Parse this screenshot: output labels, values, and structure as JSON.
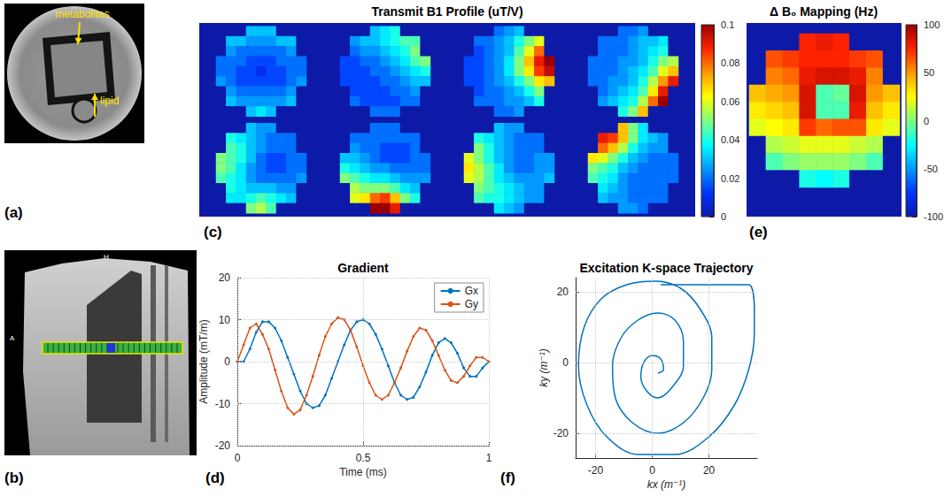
{
  "chart_data": [
    {
      "label": "(a)",
      "type": "image",
      "annotations": [
        "metabolites",
        "lipid"
      ]
    },
    {
      "label": "(b)",
      "type": "image",
      "annotations": [
        "H",
        "A"
      ]
    },
    {
      "label": "(c)",
      "type": "heatmap",
      "title": "Transmit B1 Profile (uT/V)",
      "maps": [
        [
          [
            0,
            0,
            0,
            0.03,
            0.03,
            0.03,
            0,
            0,
            0
          ],
          [
            0,
            0.03,
            0.03,
            0.025,
            0.025,
            0.025,
            0.03,
            0.03,
            0
          ],
          [
            0,
            0.025,
            0.02,
            0.02,
            0.02,
            0.02,
            0.02,
            0.025,
            0
          ],
          [
            0.02,
            0.02,
            0.02,
            0.015,
            0.015,
            0.015,
            0.02,
            0.02,
            0.02
          ],
          [
            0.02,
            0.02,
            0.015,
            0.015,
            0.01,
            0.015,
            0.015,
            0.02,
            0.02
          ],
          [
            0.025,
            0.02,
            0.015,
            0.015,
            0.015,
            0.015,
            0.015,
            0.02,
            0.025
          ],
          [
            0,
            0.025,
            0.02,
            0.02,
            0.02,
            0.02,
            0.02,
            0.025,
            0
          ],
          [
            0,
            0.03,
            0.025,
            0.025,
            0.025,
            0.025,
            0.025,
            0.03,
            0
          ],
          [
            0,
            0,
            0,
            0.03,
            0.035,
            0.03,
            0,
            0,
            0
          ]
        ],
        [
          [
            0,
            0,
            0,
            0.03,
            0.035,
            0.04,
            0,
            0,
            0
          ],
          [
            0,
            0.025,
            0.03,
            0.03,
            0.035,
            0.04,
            0.045,
            0.045,
            0
          ],
          [
            0,
            0.02,
            0.025,
            0.025,
            0.03,
            0.035,
            0.04,
            0.05,
            0
          ],
          [
            0.015,
            0.015,
            0.02,
            0.02,
            0.025,
            0.03,
            0.035,
            0.045,
            0.05
          ],
          [
            0.015,
            0.015,
            0.015,
            0.02,
            0.02,
            0.025,
            0.03,
            0.035,
            0.04
          ],
          [
            0.015,
            0.015,
            0.015,
            0.015,
            0.02,
            0.02,
            0.025,
            0.03,
            0.03
          ],
          [
            0,
            0.015,
            0.015,
            0.015,
            0.015,
            0.02,
            0.02,
            0.025,
            0
          ],
          [
            0,
            0.02,
            0.015,
            0.015,
            0.015,
            0.015,
            0.02,
            0.02,
            0
          ],
          [
            0,
            0,
            0,
            0.02,
            0.02,
            0.02,
            0,
            0,
            0
          ]
        ],
        [
          [
            0,
            0,
            0,
            0.02,
            0.025,
            0.03,
            0,
            0,
            0
          ],
          [
            0,
            0.02,
            0.02,
            0.025,
            0.03,
            0.04,
            0.05,
            0.06,
            0
          ],
          [
            0,
            0.015,
            0.02,
            0.025,
            0.03,
            0.045,
            0.06,
            0.08,
            0
          ],
          [
            0.015,
            0.015,
            0.02,
            0.025,
            0.035,
            0.05,
            0.07,
            0.09,
            0.1
          ],
          [
            0.015,
            0.015,
            0.02,
            0.025,
            0.035,
            0.05,
            0.065,
            0.085,
            0.095
          ],
          [
            0.015,
            0.015,
            0.02,
            0.025,
            0.03,
            0.04,
            0.05,
            0.065,
            0.07
          ],
          [
            0,
            0.015,
            0.02,
            0.02,
            0.025,
            0.03,
            0.04,
            0.05,
            0
          ],
          [
            0,
            0.02,
            0.02,
            0.02,
            0.025,
            0.025,
            0.03,
            0.04,
            0
          ],
          [
            0,
            0,
            0,
            0.02,
            0.02,
            0.025,
            0,
            0,
            0
          ]
        ],
        [
          [
            0,
            0,
            0,
            0.02,
            0.02,
            0.025,
            0,
            0,
            0
          ],
          [
            0,
            0.02,
            0.02,
            0.02,
            0.025,
            0.03,
            0.03,
            0.035,
            0
          ],
          [
            0,
            0.02,
            0.02,
            0.02,
            0.025,
            0.03,
            0.035,
            0.04,
            0
          ],
          [
            0.02,
            0.02,
            0.02,
            0.025,
            0.025,
            0.03,
            0.04,
            0.05,
            0.055
          ],
          [
            0.02,
            0.02,
            0.02,
            0.025,
            0.03,
            0.035,
            0.045,
            0.06,
            0.07
          ],
          [
            0.02,
            0.02,
            0.025,
            0.025,
            0.03,
            0.04,
            0.055,
            0.075,
            0.09
          ],
          [
            0,
            0.02,
            0.025,
            0.03,
            0.035,
            0.045,
            0.065,
            0.09,
            0
          ],
          [
            0,
            0.025,
            0.03,
            0.035,
            0.04,
            0.055,
            0.08,
            0.1,
            0
          ],
          [
            0,
            0,
            0,
            0.04,
            0.05,
            0.07,
            0,
            0,
            0
          ]
        ],
        [
          [
            0,
            0,
            0,
            0.03,
            0.025,
            0.025,
            0,
            0,
            0
          ],
          [
            0,
            0.04,
            0.035,
            0.03,
            0.025,
            0.02,
            0.02,
            0.02,
            0
          ],
          [
            0,
            0.045,
            0.04,
            0.03,
            0.025,
            0.02,
            0.02,
            0.02,
            0
          ],
          [
            0.05,
            0.045,
            0.04,
            0.03,
            0.02,
            0.015,
            0.015,
            0.02,
            0.02
          ],
          [
            0.05,
            0.045,
            0.035,
            0.025,
            0.02,
            0.015,
            0.015,
            0.02,
            0.02
          ],
          [
            0.045,
            0.04,
            0.035,
            0.025,
            0.02,
            0.02,
            0.02,
            0.02,
            0.025
          ],
          [
            0,
            0.04,
            0.035,
            0.03,
            0.03,
            0.03,
            0.025,
            0.025,
            0
          ],
          [
            0,
            0.035,
            0.035,
            0.04,
            0.045,
            0.04,
            0.035,
            0.03,
            0
          ],
          [
            0,
            0,
            0,
            0.05,
            0.055,
            0.045,
            0,
            0,
            0
          ]
        ],
        [
          [
            0,
            0,
            0,
            0.02,
            0.02,
            0.02,
            0,
            0,
            0
          ],
          [
            0,
            0.02,
            0.02,
            0.02,
            0.02,
            0.02,
            0.02,
            0.02,
            0
          ],
          [
            0,
            0.025,
            0.02,
            0.02,
            0.015,
            0.015,
            0.015,
            0.02,
            0
          ],
          [
            0.03,
            0.03,
            0.025,
            0.02,
            0.015,
            0.015,
            0.015,
            0.02,
            0.02
          ],
          [
            0.04,
            0.035,
            0.03,
            0.025,
            0.025,
            0.02,
            0.02,
            0.02,
            0.02
          ],
          [
            0.05,
            0.045,
            0.04,
            0.035,
            0.035,
            0.03,
            0.025,
            0.025,
            0.025
          ],
          [
            0,
            0.055,
            0.05,
            0.05,
            0.05,
            0.045,
            0.035,
            0.03,
            0
          ],
          [
            0,
            0.06,
            0.065,
            0.08,
            0.085,
            0.07,
            0.05,
            0.04,
            0
          ],
          [
            0,
            0,
            0,
            0.1,
            0.1,
            0.09,
            0,
            0,
            0
          ]
        ],
        [
          [
            0,
            0,
            0,
            0.03,
            0.025,
            0.025,
            0,
            0,
            0
          ],
          [
            0,
            0.04,
            0.035,
            0.03,
            0.025,
            0.02,
            0.02,
            0.02,
            0
          ],
          [
            0,
            0.05,
            0.04,
            0.03,
            0.025,
            0.02,
            0.02,
            0.02,
            0
          ],
          [
            0.06,
            0.05,
            0.04,
            0.03,
            0.025,
            0.02,
            0.02,
            0.025,
            0.025
          ],
          [
            0.065,
            0.055,
            0.045,
            0.035,
            0.025,
            0.02,
            0.02,
            0.025,
            0.025
          ],
          [
            0.06,
            0.055,
            0.045,
            0.035,
            0.03,
            0.025,
            0.025,
            0.025,
            0.03
          ],
          [
            0,
            0.05,
            0.045,
            0.04,
            0.035,
            0.03,
            0.025,
            0.025,
            0
          ],
          [
            0,
            0.045,
            0.04,
            0.04,
            0.035,
            0.03,
            0.025,
            0.025,
            0
          ],
          [
            0,
            0,
            0,
            0.035,
            0.03,
            0.025,
            0,
            0,
            0
          ]
        ],
        [
          [
            0,
            0,
            0,
            0.07,
            0.05,
            0.035,
            0,
            0,
            0
          ],
          [
            0,
            0.09,
            0.085,
            0.07,
            0.05,
            0.035,
            0.03,
            0.025,
            0
          ],
          [
            0,
            0.08,
            0.07,
            0.055,
            0.04,
            0.03,
            0.025,
            0.025,
            0
          ],
          [
            0.065,
            0.06,
            0.05,
            0.04,
            0.03,
            0.025,
            0.02,
            0.02,
            0.02
          ],
          [
            0.05,
            0.045,
            0.04,
            0.03,
            0.025,
            0.02,
            0.02,
            0.02,
            0.02
          ],
          [
            0.045,
            0.04,
            0.035,
            0.025,
            0.02,
            0.02,
            0.02,
            0.02,
            0.02
          ],
          [
            0,
            0.035,
            0.03,
            0.025,
            0.02,
            0.02,
            0.02,
            0.02,
            0
          ],
          [
            0,
            0.03,
            0.025,
            0.025,
            0.02,
            0.02,
            0.02,
            0.02,
            0
          ],
          [
            0,
            0,
            0,
            0.025,
            0.025,
            0.02,
            0,
            0,
            0
          ]
        ]
      ],
      "colorbar": {
        "range": [
          0,
          0.1
        ],
        "ticks": [
          0,
          0.02,
          0.04,
          0.06,
          0.08,
          0.1
        ]
      }
    },
    {
      "label": "(d)",
      "type": "line",
      "title": "Gradient",
      "x_label": "Time (ms)",
      "y_label": "Amplitude (mT/m)",
      "x": [
        0,
        0.025,
        0.05,
        0.075,
        0.1,
        0.125,
        0.15,
        0.175,
        0.2,
        0.225,
        0.25,
        0.275,
        0.3,
        0.325,
        0.35,
        0.375,
        0.4,
        0.425,
        0.45,
        0.475,
        0.5,
        0.525,
        0.55,
        0.575,
        0.6,
        0.625,
        0.65,
        0.675,
        0.7,
        0.725,
        0.75,
        0.775,
        0.8,
        0.825,
        0.85,
        0.875,
        0.9,
        0.925,
        0.95,
        0.975,
        1
      ],
      "series": [
        {
          "name": "Gx",
          "color": "#0072bd",
          "values": [
            0,
            0,
            3,
            7,
            9.5,
            9.5,
            8,
            5,
            1,
            -3,
            -7,
            -10,
            -11,
            -10.5,
            -8,
            -4,
            0,
            4,
            7.5,
            9.5,
            10,
            9,
            6.5,
            3,
            -1,
            -5,
            -8,
            -9,
            -8.5,
            -6,
            -2.5,
            1.5,
            4.5,
            5.5,
            4.5,
            2,
            -1.5,
            -3.5,
            -3.5,
            -1.5,
            0
          ]
        },
        {
          "name": "Gy",
          "color": "#d95319",
          "values": [
            0,
            4,
            8,
            9,
            6.5,
            3,
            -2,
            -7,
            -11,
            -12.5,
            -11.5,
            -8,
            -3.5,
            1.5,
            6,
            9,
            10.5,
            10,
            7.5,
            3.5,
            -1,
            -5,
            -8,
            -9,
            -8,
            -5,
            -1.5,
            2.5,
            6,
            8,
            7.5,
            5,
            1.5,
            -2,
            -4.5,
            -5,
            -3.5,
            -1,
            1,
            1,
            0
          ]
        }
      ],
      "xlim": [
        0,
        1
      ],
      "xticks": [
        0,
        0.5,
        1
      ],
      "ylim": [
        -20,
        20
      ],
      "yticks": [
        -20,
        -10,
        0,
        10,
        20
      ],
      "grid": true,
      "legend": "upper right",
      "marker": "circle"
    },
    {
      "label": "(e)",
      "type": "heatmap",
      "title": "Δ B₀ Mapping (Hz)",
      "cells": [
        [
          -100,
          -100,
          -100,
          75,
          80,
          75,
          -100,
          -100,
          -100
        ],
        [
          -100,
          65,
          70,
          75,
          75,
          75,
          70,
          65,
          -100
        ],
        [
          -100,
          55,
          60,
          80,
          85,
          85,
          80,
          55,
          -100
        ],
        [
          40,
          45,
          50,
          85,
          -10,
          -5,
          85,
          50,
          40
        ],
        [
          30,
          35,
          40,
          85,
          -10,
          -10,
          80,
          40,
          30
        ],
        [
          20,
          25,
          30,
          70,
          60,
          65,
          65,
          30,
          20
        ],
        [
          -100,
          10,
          15,
          20,
          20,
          20,
          15,
          10,
          -100
        ],
        [
          -100,
          -10,
          0,
          5,
          5,
          5,
          0,
          -10,
          -100
        ],
        [
          -100,
          -100,
          -100,
          -20,
          -25,
          -20,
          -100,
          -100,
          -100
        ]
      ],
      "colorbar": {
        "range": [
          -100,
          100
        ],
        "ticks": [
          -100,
          -50,
          0,
          50,
          100
        ]
      }
    },
    {
      "label": "(f)",
      "type": "line",
      "title": "Excitation K-space Trajectory",
      "x_label": "kx (m⁻¹)",
      "y_label": "ky (m⁻¹)",
      "x": [
        3,
        12,
        20,
        28,
        34,
        36,
        36,
        34,
        29,
        20,
        8,
        -5,
        -16,
        -23,
        -26,
        -24,
        -18,
        -9,
        1,
        10,
        17,
        21,
        21,
        18,
        11,
        2,
        -7,
        -13,
        -14,
        -11,
        -5,
        2,
        8,
        11,
        11,
        7,
        2,
        -2,
        -4,
        -3,
        0,
        3,
        4,
        2
      ],
      "y": [
        22,
        22,
        22,
        22,
        22,
        15,
        8,
        -2,
        -12,
        -21,
        -26,
        -26,
        -21,
        -12,
        -1,
        10,
        18,
        22,
        23,
        21,
        15,
        7,
        -2,
        -10,
        -17,
        -20,
        -17,
        -10,
        -1,
        7,
        12,
        14,
        12,
        6,
        -1,
        -7,
        -10,
        -8,
        -4,
        0,
        2,
        1,
        -2,
        -3
      ],
      "color": "#0072bd",
      "xlim": [
        -27,
        37
      ],
      "xticks": [
        -20,
        0,
        20
      ],
      "ylim": [
        -27,
        24
      ],
      "yticks": [
        -20,
        0,
        20
      ],
      "grid": true
    }
  ]
}
